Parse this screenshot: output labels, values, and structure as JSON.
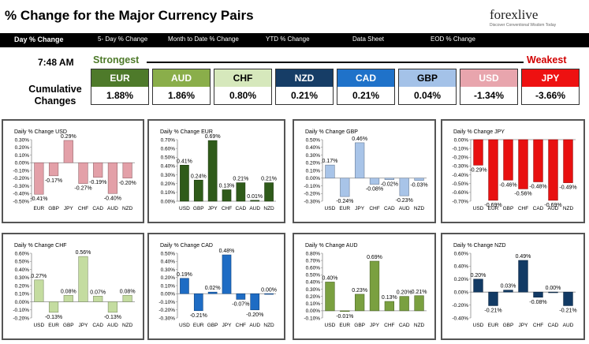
{
  "header": {
    "title": "% Change for the Major Currency Pairs",
    "logo_text": "forexlive",
    "logo_subtext": "Discover Conventional Wisdom Today"
  },
  "nav": {
    "items": [
      "Day % Change",
      "5- Day % Change",
      "Month to Date % Change",
      "YTD % Change",
      "Data Sheet",
      "EOD % Change"
    ]
  },
  "ranking": {
    "time": "7:48 AM",
    "strongest_label": "Strongest",
    "weakest_label": "Weakest",
    "cumulative_label_1": "Cumulative",
    "cumulative_label_2": "Changes",
    "tiles": [
      {
        "currency": "EUR",
        "value": "1.88%",
        "color": "#4e7a2a",
        "text_color": "#ffffff"
      },
      {
        "currency": "AUD",
        "value": "1.86%",
        "color": "#8aae4a",
        "text_color": "#ffffff"
      },
      {
        "currency": "CHF",
        "value": "0.80%",
        "color": "#d6e8bc",
        "text_color": "#000000"
      },
      {
        "currency": "NZD",
        "value": "0.21%",
        "color": "#163d66",
        "text_color": "#ffffff"
      },
      {
        "currency": "CAD",
        "value": "0.21%",
        "color": "#1f72c9",
        "text_color": "#ffffff"
      },
      {
        "currency": "GBP",
        "value": "0.04%",
        "color": "#a4c2e8",
        "text_color": "#000000"
      },
      {
        "currency": "USD",
        "value": "-1.34%",
        "color": "#e8a5ad",
        "text_color": "#ffffff"
      },
      {
        "currency": "JPY",
        "value": "-3.66%",
        "color": "#ee1111",
        "text_color": "#ffffff"
      }
    ]
  },
  "colors": {
    "USD": "#e3a0a8",
    "EUR": "#2f5b1a",
    "GBP": "#a8c4e8",
    "JPY": "#e81010",
    "CHF": "#c4dca0",
    "CAD": "#1e6cc4",
    "AUD": "#7aa040",
    "NZD": "#123a64"
  },
  "chart_data": [
    {
      "type": "bar",
      "title": "Daily % Change USD",
      "categories": [
        "EUR",
        "GBP",
        "JPY",
        "CHF",
        "CAD",
        "AUD",
        "NZD"
      ],
      "values": [
        -0.41,
        -0.17,
        0.29,
        -0.27,
        -0.19,
        -0.4,
        -0.2
      ],
      "labels": [
        "-0.41%",
        "-0.17%",
        "0.29%",
        "-0.27%",
        "-0.19%",
        "-0.40%",
        "-0.20%"
      ],
      "ylim": [
        -0.5,
        0.3
      ],
      "yticks": [
        -0.5,
        -0.4,
        -0.3,
        -0.2,
        -0.1,
        0,
        0.1,
        0.2,
        0.3
      ],
      "ytick_labels": [
        "-0.50%",
        "-0.40%",
        "-0.30%",
        "-0.20%",
        "-0.10%",
        "0.00%",
        "0.10%",
        "0.20%",
        "0.30%"
      ],
      "color_key": "USD"
    },
    {
      "type": "bar",
      "title": "Daily % Change EUR",
      "categories": [
        "USD",
        "GBP",
        "JPY",
        "CHF",
        "CAD",
        "AUD",
        "NZD"
      ],
      "values": [
        0.41,
        0.24,
        0.69,
        0.13,
        0.21,
        0.01,
        0.21
      ],
      "labels": [
        "0.41%",
        "0.24%",
        "0.69%",
        "0.13%",
        "0.21%",
        "0.01%",
        "0.21%"
      ],
      "ylim": [
        0,
        0.7
      ],
      "yticks": [
        0,
        0.1,
        0.2,
        0.3,
        0.4,
        0.5,
        0.6,
        0.7
      ],
      "ytick_labels": [
        "0.00%",
        "0.10%",
        "0.20%",
        "0.30%",
        "0.40%",
        "0.50%",
        "0.60%",
        "0.70%"
      ],
      "color_key": "EUR"
    },
    {
      "type": "bar",
      "title": "Daily % Change GBP",
      "categories": [
        "USD",
        "EUR",
        "JPY",
        "CHF",
        "CAD",
        "AUD",
        "NZD"
      ],
      "values": [
        0.17,
        -0.24,
        0.46,
        -0.08,
        -0.02,
        -0.23,
        -0.03
      ],
      "labels": [
        "0.17%",
        "-0.24%",
        "0.46%",
        "-0.08%",
        "-0.02%",
        "-0.23%",
        "-0.03%"
      ],
      "ylim": [
        -0.3,
        0.5
      ],
      "yticks": [
        -0.3,
        -0.2,
        -0.1,
        0,
        0.1,
        0.2,
        0.3,
        0.4,
        0.5
      ],
      "ytick_labels": [
        "-0.30%",
        "-0.20%",
        "-0.10%",
        "0.00%",
        "0.10%",
        "0.20%",
        "0.30%",
        "0.40%",
        "0.50%"
      ],
      "color_key": "GBP"
    },
    {
      "type": "bar",
      "title": "Daily % Change JPY",
      "categories": [
        "USD",
        "EUR",
        "GBP",
        "CHF",
        "CAD",
        "AUD",
        "NZD"
      ],
      "values": [
        -0.29,
        -0.69,
        -0.46,
        -0.56,
        -0.48,
        -0.69,
        -0.49
      ],
      "labels": [
        "-0.29%",
        "-0.69%",
        "-0.46%",
        "-0.56%",
        "-0.48%",
        "-0.69%",
        "-0.49%"
      ],
      "ylim": [
        -0.7,
        0
      ],
      "yticks": [
        -0.7,
        -0.6,
        -0.5,
        -0.4,
        -0.3,
        -0.2,
        -0.1,
        0
      ],
      "ytick_labels": [
        "-0.70%",
        "-0.60%",
        "-0.50%",
        "-0.40%",
        "-0.30%",
        "-0.20%",
        "-0.10%",
        "0.00%"
      ],
      "color_key": "JPY"
    },
    {
      "type": "bar",
      "title": "Daily % Change CHF",
      "categories": [
        "USD",
        "EUR",
        "GBP",
        "JPY",
        "CAD",
        "AUD",
        "NZD"
      ],
      "values": [
        0.27,
        -0.13,
        0.08,
        0.56,
        0.07,
        -0.13,
        0.08
      ],
      "labels": [
        "0.27%",
        "-0.13%",
        "0.08%",
        "0.56%",
        "0.07%",
        "-0.13%",
        "0.08%"
      ],
      "ylim": [
        -0.2,
        0.6
      ],
      "yticks": [
        -0.2,
        -0.1,
        0,
        0.1,
        0.2,
        0.3,
        0.4,
        0.5,
        0.6
      ],
      "ytick_labels": [
        "-0.20%",
        "-0.10%",
        "0.00%",
        "0.10%",
        "0.20%",
        "0.30%",
        "0.40%",
        "0.50%",
        "0.60%"
      ],
      "color_key": "CHF"
    },
    {
      "type": "bar",
      "title": "Daily % Change CAD",
      "categories": [
        "USD",
        "EUR",
        "GBP",
        "JPY",
        "CHF",
        "AUD",
        "NZD"
      ],
      "values": [
        0.19,
        -0.21,
        0.02,
        0.48,
        -0.07,
        -0.2,
        0.0
      ],
      "labels": [
        "0.19%",
        "-0.21%",
        "0.02%",
        "0.48%",
        "-0.07%",
        "-0.20%",
        "0.00%"
      ],
      "ylim": [
        -0.3,
        0.5
      ],
      "yticks": [
        -0.3,
        -0.2,
        -0.1,
        0,
        0.1,
        0.2,
        0.3,
        0.4,
        0.5
      ],
      "ytick_labels": [
        "-0.30%",
        "-0.20%",
        "-0.10%",
        "0.00%",
        "0.10%",
        "0.20%",
        "0.30%",
        "0.40%",
        "0.50%"
      ],
      "color_key": "CAD"
    },
    {
      "type": "bar",
      "title": "Daily % Change AUD",
      "categories": [
        "USD",
        "EUR",
        "GBP",
        "JPY",
        "CHF",
        "CAD",
        "NZD"
      ],
      "values": [
        0.4,
        -0.01,
        0.23,
        0.69,
        0.13,
        0.2,
        0.21
      ],
      "labels": [
        "0.40%",
        "-0.01%",
        "0.23%",
        "0.69%",
        "0.13%",
        "0.20%",
        "0.21%"
      ],
      "ylim": [
        -0.1,
        0.8
      ],
      "yticks": [
        -0.1,
        0,
        0.1,
        0.2,
        0.3,
        0.4,
        0.5,
        0.6,
        0.7,
        0.8
      ],
      "ytick_labels": [
        "-0.10%",
        "0.00%",
        "0.10%",
        "0.20%",
        "0.30%",
        "0.40%",
        "0.50%",
        "0.60%",
        "0.70%",
        "0.80%"
      ],
      "color_key": "AUD"
    },
    {
      "type": "bar",
      "title": "Daily % Change NZD",
      "categories": [
        "USD",
        "EUR",
        "GBP",
        "JPY",
        "CHF",
        "CAD",
        "AUD"
      ],
      "values": [
        0.2,
        -0.21,
        0.03,
        0.49,
        -0.08,
        0.0,
        -0.21
      ],
      "labels": [
        "0.20%",
        "-0.21%",
        "0.03%",
        "0.49%",
        "-0.08%",
        "0.00%",
        "-0.21%"
      ],
      "ylim": [
        -0.4,
        0.6
      ],
      "yticks": [
        -0.4,
        -0.2,
        0,
        0.2,
        0.4,
        0.6
      ],
      "ytick_labels": [
        "-0.40%",
        "-0.20%",
        "0.00%",
        "0.20%",
        "0.40%",
        "0.60%"
      ],
      "color_key": "NZD"
    }
  ]
}
